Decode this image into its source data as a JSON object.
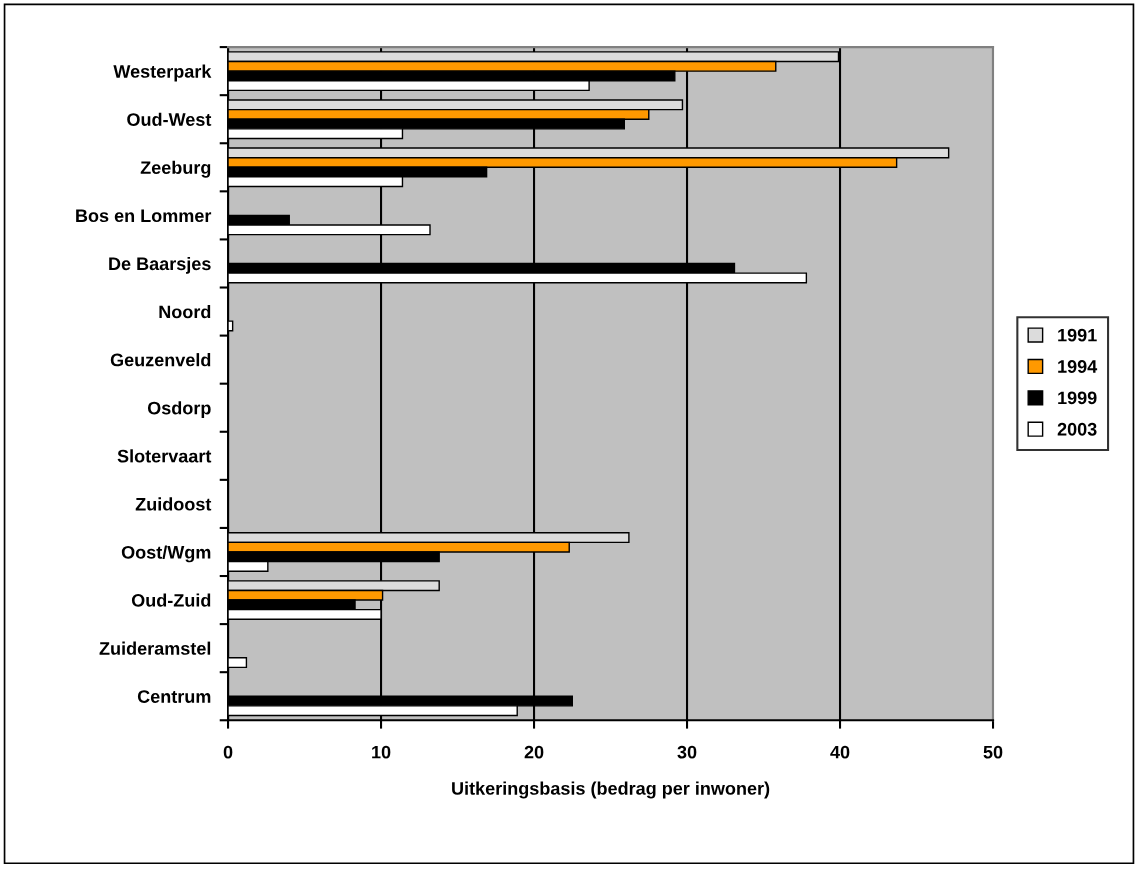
{
  "chart_data": {
    "type": "bar",
    "orientation": "horizontal",
    "xlabel": "Uitkeringsbasis (bedrag per inwoner)",
    "categories": [
      "Westerpark",
      "Oud-West",
      "Zeeburg",
      "Bos en Lommer",
      "De Baarsjes",
      "Noord",
      "Geuzenveld",
      "Osdorp",
      "Slotervaart",
      "Zuidoost",
      "Oost/Wgm",
      "Oud-Zuid",
      "Zuideramstel",
      "Centrum"
    ],
    "series": [
      {
        "name": "1991",
        "color": "#dcdcdc",
        "values": [
          39.9,
          29.7,
          47.1,
          null,
          null,
          null,
          null,
          null,
          null,
          null,
          26.2,
          13.8,
          null,
          null
        ]
      },
      {
        "name": "1994",
        "color": "#ff9900",
        "values": [
          35.8,
          27.5,
          43.7,
          null,
          null,
          null,
          null,
          null,
          null,
          null,
          22.3,
          10.1,
          null,
          null
        ]
      },
      {
        "name": "1999",
        "color": "#000000",
        "values": [
          29.2,
          25.9,
          16.9,
          4.0,
          33.1,
          null,
          null,
          null,
          null,
          null,
          13.8,
          8.3,
          null,
          22.5
        ]
      },
      {
        "name": "2003",
        "color": "#ffffff",
        "values": [
          23.6,
          11.4,
          11.4,
          13.2,
          37.8,
          0.3,
          null,
          null,
          null,
          null,
          2.6,
          10.0,
          1.2,
          18.9
        ]
      }
    ],
    "xlim": [
      0,
      50
    ],
    "xticks": [
      0,
      10,
      20,
      30,
      40,
      50
    ],
    "grid": "x",
    "legend": "right"
  }
}
